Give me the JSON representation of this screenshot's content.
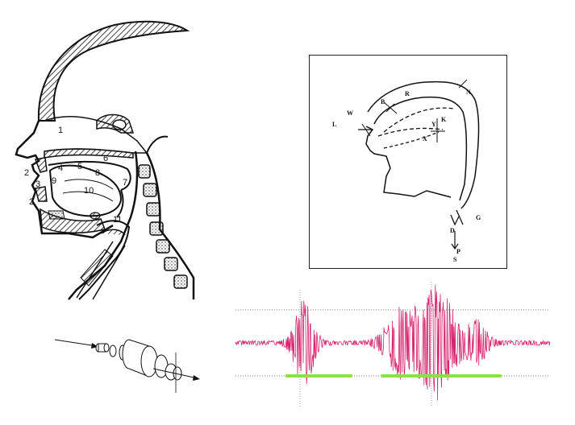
{
  "anatomy": {
    "labels": [
      "1",
      "2",
      "3",
      "2",
      "4",
      "5",
      "6",
      "8",
      "9",
      "10",
      "7",
      "11"
    ]
  },
  "vocal_model": {
    "labels": [
      "W",
      "L",
      "B",
      "R",
      "N",
      "Y",
      "K",
      "X",
      "G",
      "D",
      "P",
      "S"
    ]
  },
  "colors": {
    "waveform": "#d6246e",
    "voicing": "#8ee03a",
    "ink": "#111111"
  }
}
